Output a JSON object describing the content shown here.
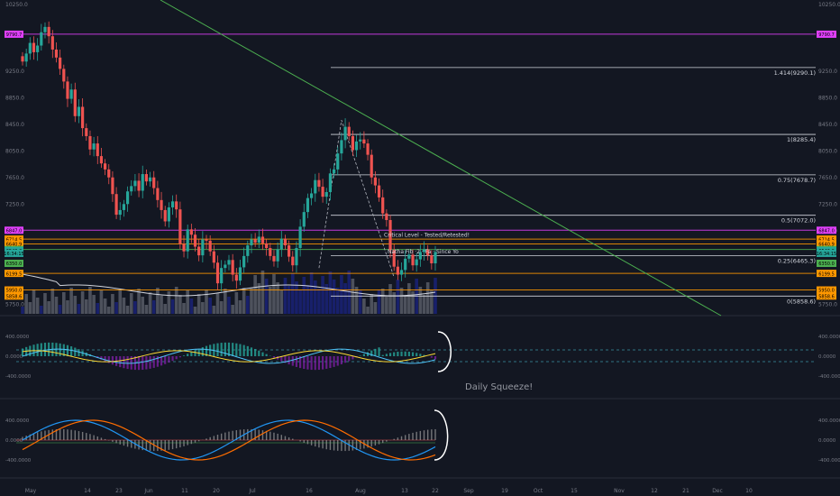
{
  "chart_data": [
    {
      "type": "candlestick",
      "ylim": [
        5700,
        10250
      ],
      "y_ticks": [
        "10250.0",
        "9250.0",
        "8850.0",
        "8450.0",
        "8050.0",
        "7650.0",
        "7250.0",
        "6850.0",
        "5750.0"
      ],
      "x_ticks": [
        "May",
        "14",
        "23",
        "Jun",
        "11",
        "20",
        "Jul",
        "16",
        "Aug",
        "13",
        "22",
        "Sep",
        "19",
        "Oct",
        "15",
        "Nov",
        "12",
        "21",
        "Dec",
        "10"
      ],
      "price_markers": [
        {
          "label": "9790.7",
          "value": 9790.7,
          "color": "#e040fb"
        },
        {
          "label": "6847.0",
          "value": 6847.0,
          "color": "#e040fb"
        },
        {
          "label": "6714.5",
          "value": 6714.5,
          "color": "#ff9800"
        },
        {
          "label": "6640.9",
          "value": 6640.9,
          "color": "#ff9800"
        },
        {
          "label": "6557.5",
          "value": 6557.5,
          "color": "#4caf50"
        },
        {
          "label": "6543.0",
          "value": 6543.0,
          "color": "#26a69a"
        },
        {
          "label": "16:34:15",
          "value": 6500,
          "color": "#26a69a"
        },
        {
          "label": "6350.0",
          "value": 6350.0,
          "color": "#4caf50"
        },
        {
          "label": "6199.5",
          "value": 6199.5,
          "color": "#ff9800"
        },
        {
          "label": "5950.0",
          "value": 5950.0,
          "color": "#ff9800"
        },
        {
          "label": "5858.6",
          "value": 5858.6,
          "color": "#ff9800"
        }
      ],
      "fib_levels": [
        {
          "label": "1.414(9290.1)",
          "value": 9290.1
        },
        {
          "label": "1(8285.4)",
          "value": 8285.4
        },
        {
          "label": "0.75(7678.7)",
          "value": 7678.7
        },
        {
          "label": "0.5(7072.0)",
          "value": 7072.0
        },
        {
          "label": "0.25(6465.3)",
          "value": 6465.3
        },
        {
          "label": "0(5858.6)",
          "value": 5858.6
        }
      ],
      "horizontal_levels": [
        {
          "value": 9790.7,
          "color": "#e040fb"
        },
        {
          "value": 6847.0,
          "color": "#e040fb"
        },
        {
          "value": 6714.5,
          "color": "#ff9800"
        },
        {
          "value": 6640.9,
          "color": "#ff9800"
        },
        {
          "value": 6557.5,
          "color": "#4caf50"
        },
        {
          "value": 6199.5,
          "color": "#ff9800"
        },
        {
          "value": 5950.0,
          "color": "#ff9800"
        }
      ],
      "annotations": [
        "Critical Level - Tested/Retested!",
        "Natha Fib ·2 · Fa · Since Yo"
      ],
      "closes": [
        9380,
        9500,
        9660,
        9520,
        9620,
        9820,
        9900,
        9760,
        9560,
        9440,
        9270,
        9080,
        8820,
        8960,
        8560,
        8700,
        8380,
        8260,
        8060,
        8150,
        7960,
        7850,
        7760,
        7640,
        7390,
        7080,
        7150,
        7240,
        7430,
        7510,
        7590,
        7440,
        7690,
        7580,
        7640,
        7480,
        7300,
        7150,
        6980,
        7190,
        7280,
        7160,
        6640,
        6530,
        6860,
        6780,
        6600,
        6470,
        6710,
        6690,
        6530,
        6360,
        6050,
        6280,
        6330,
        6400,
        6180,
        6090,
        6290,
        6460,
        6620,
        6710,
        6660,
        6750,
        6650,
        6580,
        6460,
        6380,
        6560,
        6720,
        6620,
        6450,
        6320,
        6580,
        6900,
        7120,
        7330,
        7400,
        7600,
        7500,
        7350,
        7420,
        7700,
        7760,
        8000,
        8200,
        8400,
        8260,
        8050,
        8180,
        8210,
        8150,
        7980,
        7640,
        7520,
        7340,
        7100,
        7000,
        6550,
        6300,
        6180,
        6250,
        6420,
        6480,
        6320,
        6410,
        6520,
        6560,
        6470,
        6350,
        6520
      ]
    },
    {
      "type": "oscillator",
      "y_ticks": [
        "400.0000",
        "0.0000",
        "-400.0000"
      ],
      "annotation": "Daily Squeeze!"
    },
    {
      "type": "oscillator",
      "y_ticks": [
        "400.0000",
        "0.0000",
        "-400.0000"
      ]
    }
  ]
}
